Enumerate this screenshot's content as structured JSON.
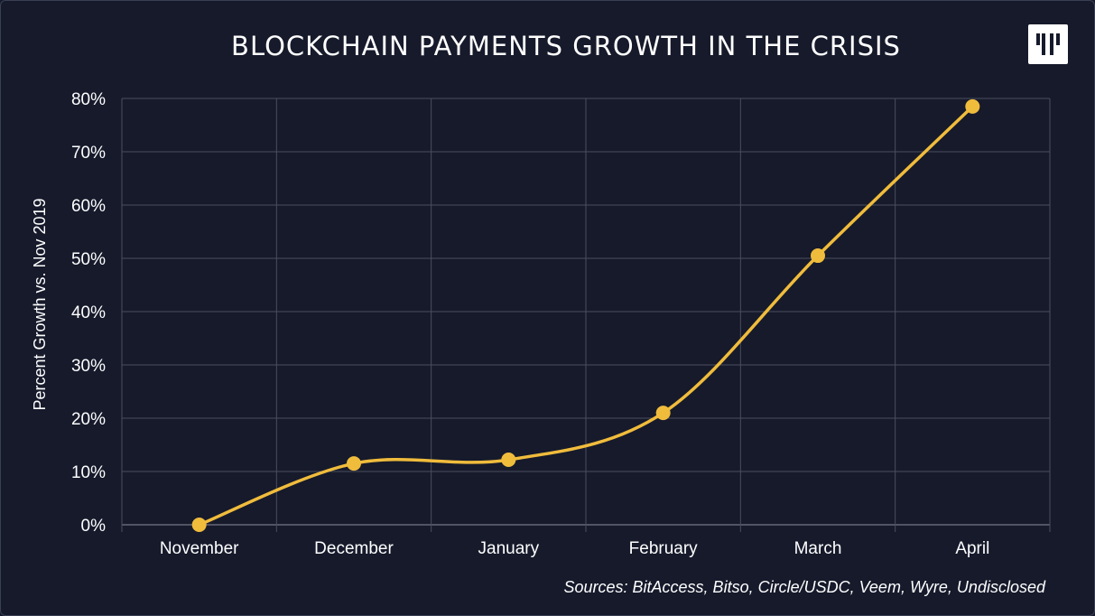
{
  "page": {
    "sources": "Sources: BitAccess, Bitso, Circle/USDC, Veem, Wyre, Undisclosed",
    "logo_icon": "brand-logo-icon"
  },
  "colors": {
    "background": "#161a2b",
    "grid": "#4a4e5e",
    "line": "#f0bc3c",
    "text": "#ffffff"
  },
  "chart_data": {
    "type": "line",
    "title": "BLOCKCHAIN PAYMENTS GROWTH IN THE CRISIS",
    "xlabel": "",
    "ylabel": "Percent Growth vs. Nov 2019",
    "categories": [
      "November",
      "December",
      "January",
      "February",
      "March",
      "April"
    ],
    "series": [
      {
        "values": [
          0,
          11.5,
          12.2,
          21,
          50.5,
          78.5
        ]
      }
    ],
    "ylim": [
      0,
      80
    ],
    "yticks": [
      "0%",
      "10%",
      "20%",
      "30%",
      "40%",
      "50%",
      "60%",
      "70%",
      "80%"
    ],
    "grid": true,
    "smooth": true,
    "markers": true,
    "legend": "none"
  }
}
